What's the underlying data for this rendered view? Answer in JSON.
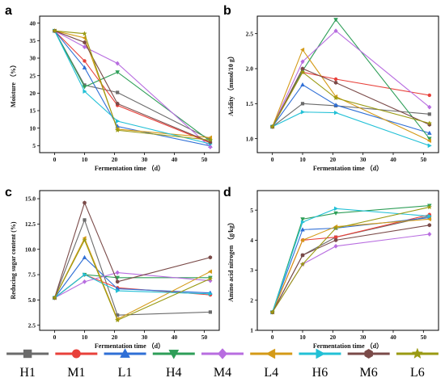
{
  "legend": [
    {
      "name": "H1",
      "color": "#6b6b6b",
      "marker": "square"
    },
    {
      "name": "M1",
      "color": "#e8403a",
      "marker": "circle"
    },
    {
      "name": "L1",
      "color": "#2f6fd6",
      "marker": "triangle-up"
    },
    {
      "name": "H4",
      "color": "#2e9e58",
      "marker": "triangle-down"
    },
    {
      "name": "M4",
      "color": "#b86de0",
      "marker": "diamond"
    },
    {
      "name": "L4",
      "color": "#d49a17",
      "marker": "triangle-left"
    },
    {
      "name": "H6",
      "color": "#22c0d6",
      "marker": "triangle-right"
    },
    {
      "name": "M6",
      "color": "#7a4a48",
      "marker": "hexagon"
    },
    {
      "name": "L6",
      "color": "#9a9a12",
      "marker": "star"
    }
  ],
  "chart_data": [
    {
      "type": "line",
      "panel": "a",
      "xlabel": "Fermentation time （d）",
      "ylabel": "Moisture （%）",
      "xlim": [
        -5,
        55
      ],
      "ylim": [
        3,
        42
      ],
      "xticks": [
        0,
        10,
        20,
        30,
        40,
        50
      ],
      "yticks": [
        5,
        10,
        15,
        20,
        25,
        30,
        35,
        40
      ],
      "x": [
        0,
        10,
        21,
        52
      ],
      "series": [
        {
          "name": "H1",
          "values": [
            37.8,
            22.3,
            20.2,
            6.8
          ]
        },
        {
          "name": "M1",
          "values": [
            37.8,
            29.2,
            16.5,
            5.8
          ]
        },
        {
          "name": "L1",
          "values": [
            37.8,
            27.3,
            10.5,
            4.9
          ]
        },
        {
          "name": "H4",
          "values": [
            37.8,
            21.8,
            26.0,
            6.3
          ]
        },
        {
          "name": "M4",
          "values": [
            37.8,
            33.2,
            28.5,
            4.6
          ]
        },
        {
          "name": "L4",
          "values": [
            37.8,
            35.8,
            9.7,
            7.3
          ]
        },
        {
          "name": "H6",
          "values": [
            37.8,
            20.5,
            12.0,
            5.5
          ]
        },
        {
          "name": "M6",
          "values": [
            37.8,
            34.5,
            17.0,
            6.0
          ]
        },
        {
          "name": "L6",
          "values": [
            37.8,
            37.0,
            9.4,
            6.6
          ]
        }
      ]
    },
    {
      "type": "line",
      "panel": "b",
      "xlabel": "Fermentation time （d）",
      "ylabel": "Acidity （mmol/10 g）",
      "xlim": [
        -5,
        55
      ],
      "ylim": [
        0.8,
        2.75
      ],
      "xticks": [
        0,
        10,
        20,
        30,
        40,
        50
      ],
      "yticks": [
        1.0,
        1.5,
        2.0,
        2.5
      ],
      "x": [
        0,
        10,
        21,
        52
      ],
      "series": [
        {
          "name": "H1",
          "values": [
            1.17,
            1.5,
            1.47,
            1.35
          ]
        },
        {
          "name": "M1",
          "values": [
            1.17,
            1.95,
            1.85,
            1.62
          ]
        },
        {
          "name": "L1",
          "values": [
            1.17,
            1.77,
            1.48,
            1.08
          ]
        },
        {
          "name": "H4",
          "values": [
            1.17,
            1.97,
            2.7,
            1.0
          ]
        },
        {
          "name": "M4",
          "values": [
            1.17,
            2.1,
            2.54,
            1.45
          ]
        },
        {
          "name": "L4",
          "values": [
            1.17,
            2.27,
            1.6,
            0.97
          ]
        },
        {
          "name": "H6",
          "values": [
            1.17,
            1.38,
            1.37,
            0.9
          ]
        },
        {
          "name": "M6",
          "values": [
            1.17,
            2.0,
            1.8,
            1.2
          ]
        },
        {
          "name": "L6",
          "values": [
            1.17,
            1.95,
            1.58,
            1.22
          ]
        }
      ]
    },
    {
      "type": "line",
      "panel": "c",
      "xlabel": "Fermentation time （d）",
      "ylabel": "Reducing sugar content (%)",
      "xlim": [
        -5,
        55
      ],
      "ylim": [
        2.0,
        15.8
      ],
      "xticks": [
        0,
        10,
        20,
        30,
        40,
        50
      ],
      "yticks": [
        2.5,
        5.0,
        7.5,
        10.0,
        12.5,
        15.0
      ],
      "x": [
        0,
        10,
        21,
        52
      ],
      "series": [
        {
          "name": "H1",
          "values": [
            5.2,
            12.9,
            3.5,
            3.8
          ]
        },
        {
          "name": "M1",
          "values": [
            5.2,
            7.5,
            6.2,
            5.5
          ]
        },
        {
          "name": "L1",
          "values": [
            5.2,
            9.2,
            6.1,
            5.7
          ]
        },
        {
          "name": "H4",
          "values": [
            5.2,
            7.5,
            7.2,
            7.2
          ]
        },
        {
          "name": "M4",
          "values": [
            5.2,
            6.8,
            7.7,
            6.9
          ]
        },
        {
          "name": "L4",
          "values": [
            5.2,
            11.1,
            3.1,
            7.8
          ]
        },
        {
          "name": "H6",
          "values": [
            5.2,
            7.5,
            5.9,
            5.6
          ]
        },
        {
          "name": "M6",
          "values": [
            5.2,
            14.6,
            6.8,
            9.2
          ]
        },
        {
          "name": "L6",
          "values": [
            5.2,
            10.9,
            3.0,
            7.1
          ]
        }
      ]
    },
    {
      "type": "line",
      "panel": "d",
      "xlabel": "Fermentation time （d）",
      "ylabel": "Amino acid nitrogen （g/kg）",
      "xlim": [
        -5,
        55
      ],
      "ylim": [
        1.0,
        5.65
      ],
      "xticks": [
        0,
        10,
        20,
        30,
        40,
        50
      ],
      "yticks": [
        1,
        2,
        3,
        4,
        5
      ],
      "x": [
        0,
        10,
        21,
        52
      ],
      "series": [
        {
          "name": "H1",
          "values": [
            1.6,
            3.5,
            4.1,
            4.8
          ]
        },
        {
          "name": "M1",
          "values": [
            1.6,
            4.0,
            4.1,
            4.85
          ]
        },
        {
          "name": "L1",
          "values": [
            1.6,
            4.35,
            4.4,
            4.75
          ]
        },
        {
          "name": "H4",
          "values": [
            1.6,
            4.7,
            4.9,
            5.15
          ]
        },
        {
          "name": "M4",
          "values": [
            1.6,
            3.2,
            3.8,
            4.2
          ]
        },
        {
          "name": "L4",
          "values": [
            1.6,
            4.0,
            4.45,
            4.7
          ]
        },
        {
          "name": "H6",
          "values": [
            1.6,
            4.6,
            5.05,
            4.8
          ]
        },
        {
          "name": "M6",
          "values": [
            1.6,
            3.5,
            4.0,
            4.5
          ]
        },
        {
          "name": "L6",
          "values": [
            1.6,
            3.2,
            4.4,
            5.1
          ]
        }
      ]
    }
  ]
}
